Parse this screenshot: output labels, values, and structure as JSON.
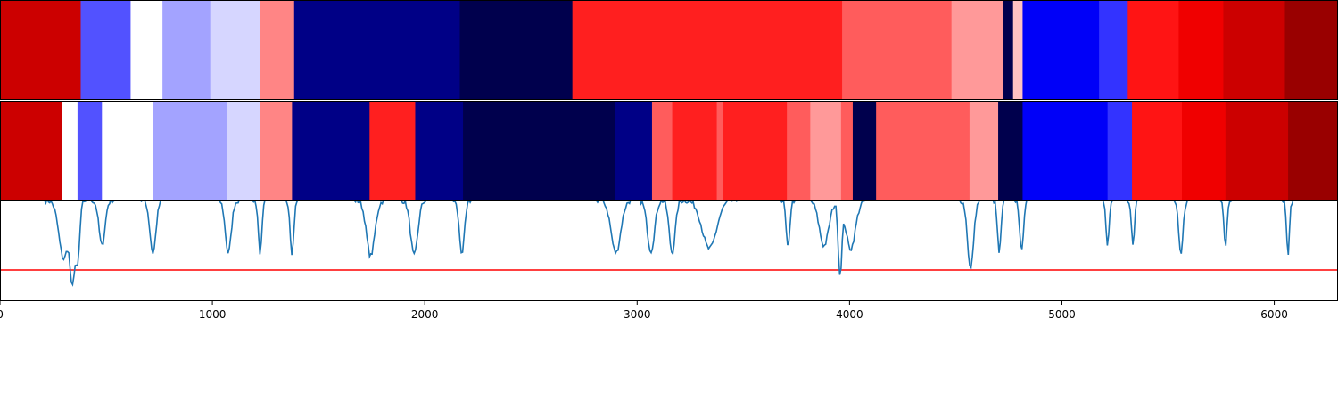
{
  "chart_data": {
    "type": "heatmap",
    "title": "",
    "xlabel": "",
    "ylabel": "",
    "xlim": [
      0,
      6300
    ],
    "x_ticks": [
      {
        "value": 0,
        "label": "0"
      },
      {
        "value": 1000,
        "label": "1000"
      },
      {
        "value": 2000,
        "label": "2000"
      },
      {
        "value": 3000,
        "label": "3000"
      },
      {
        "value": 4000,
        "label": "4000"
      },
      {
        "value": 5000,
        "label": "5000"
      },
      {
        "value": 6000,
        "label": "6000"
      }
    ],
    "colormap": "seismic",
    "value_range": [
      0,
      1
    ],
    "tracks": [
      {
        "segments": [
          {
            "start": 0,
            "end": 380,
            "value": 0.85
          },
          {
            "start": 380,
            "end": 615,
            "value": 0.33
          },
          {
            "start": 615,
            "end": 765,
            "value": 0.5
          },
          {
            "start": 765,
            "end": 990,
            "value": 0.41
          },
          {
            "start": 990,
            "end": 1225,
            "value": 0.46
          },
          {
            "start": 1225,
            "end": 1385,
            "value": 0.62
          },
          {
            "start": 1385,
            "end": 2165,
            "value": 0.08
          },
          {
            "start": 2165,
            "end": 2695,
            "value": 0.0
          },
          {
            "start": 2695,
            "end": 3965,
            "value": 0.72
          },
          {
            "start": 3965,
            "end": 4480,
            "value": 0.66
          },
          {
            "start": 4480,
            "end": 4725,
            "value": 0.6
          },
          {
            "start": 4725,
            "end": 4770,
            "value": 0.0
          },
          {
            "start": 4770,
            "end": 4815,
            "value": 0.56
          },
          {
            "start": 4815,
            "end": 5175,
            "value": 0.24
          },
          {
            "start": 5175,
            "end": 5310,
            "value": 0.3
          },
          {
            "start": 5310,
            "end": 5550,
            "value": 0.73
          },
          {
            "start": 5550,
            "end": 5760,
            "value": 0.78
          },
          {
            "start": 5760,
            "end": 6050,
            "value": 0.85
          },
          {
            "start": 6050,
            "end": 6300,
            "value": 0.95
          }
        ]
      },
      {
        "segments": [
          {
            "start": 0,
            "end": 290,
            "value": 0.85
          },
          {
            "start": 290,
            "end": 365,
            "value": 0.5
          },
          {
            "start": 365,
            "end": 480,
            "value": 0.33
          },
          {
            "start": 480,
            "end": 720,
            "value": 0.5
          },
          {
            "start": 720,
            "end": 1070,
            "value": 0.41
          },
          {
            "start": 1070,
            "end": 1225,
            "value": 0.46
          },
          {
            "start": 1225,
            "end": 1375,
            "value": 0.62
          },
          {
            "start": 1375,
            "end": 1740,
            "value": 0.08
          },
          {
            "start": 1740,
            "end": 1955,
            "value": 0.72
          },
          {
            "start": 1955,
            "end": 2180,
            "value": 0.08
          },
          {
            "start": 2180,
            "end": 2895,
            "value": 0.0
          },
          {
            "start": 2895,
            "end": 3070,
            "value": 0.08
          },
          {
            "start": 3070,
            "end": 3165,
            "value": 0.66
          },
          {
            "start": 3165,
            "end": 3375,
            "value": 0.72
          },
          {
            "start": 3375,
            "end": 3405,
            "value": 0.66
          },
          {
            "start": 3405,
            "end": 3705,
            "value": 0.72
          },
          {
            "start": 3705,
            "end": 3815,
            "value": 0.66
          },
          {
            "start": 3815,
            "end": 3960,
            "value": 0.6
          },
          {
            "start": 3960,
            "end": 4015,
            "value": 0.66
          },
          {
            "start": 4015,
            "end": 4125,
            "value": 0.0
          },
          {
            "start": 4125,
            "end": 4565,
            "value": 0.66
          },
          {
            "start": 4565,
            "end": 4700,
            "value": 0.6
          },
          {
            "start": 4700,
            "end": 4815,
            "value": 0.0
          },
          {
            "start": 4815,
            "end": 5215,
            "value": 0.24
          },
          {
            "start": 5215,
            "end": 5330,
            "value": 0.3
          },
          {
            "start": 5330,
            "end": 5565,
            "value": 0.73
          },
          {
            "start": 5565,
            "end": 5770,
            "value": 0.78
          },
          {
            "start": 5770,
            "end": 6065,
            "value": 0.85
          },
          {
            "start": 6065,
            "end": 6300,
            "value": 0.95
          }
        ]
      }
    ],
    "line_panel": {
      "ylim": [
        0,
        1
      ],
      "threshold": {
        "value": 0.31,
        "color": "#ff0000"
      },
      "line_color": "#1f77b4",
      "baseline": 1.0,
      "dips": [
        {
          "center": 300,
          "width": 40,
          "depth": 0.58
        },
        {
          "center": 340,
          "width": 18,
          "depth": 0.72
        },
        {
          "center": 365,
          "width": 18,
          "depth": 0.62
        },
        {
          "center": 480,
          "width": 25,
          "depth": 0.45
        },
        {
          "center": 720,
          "width": 25,
          "depth": 0.52
        },
        {
          "center": 1075,
          "width": 25,
          "depth": 0.52
        },
        {
          "center": 1225,
          "width": 15,
          "depth": 0.52
        },
        {
          "center": 1375,
          "width": 15,
          "depth": 0.52
        },
        {
          "center": 1745,
          "width": 35,
          "depth": 0.55
        },
        {
          "center": 1950,
          "width": 30,
          "depth": 0.55
        },
        {
          "center": 2175,
          "width": 22,
          "depth": 0.52
        },
        {
          "center": 2900,
          "width": 40,
          "depth": 0.52
        },
        {
          "center": 3065,
          "width": 30,
          "depth": 0.5
        },
        {
          "center": 3165,
          "width": 25,
          "depth": 0.52
        },
        {
          "center": 3340,
          "width": 60,
          "depth": 0.48
        },
        {
          "center": 3710,
          "width": 15,
          "depth": 0.48
        },
        {
          "center": 3880,
          "width": 40,
          "depth": 0.45
        },
        {
          "center": 3955,
          "width": 15,
          "depth": 0.7
        },
        {
          "center": 4005,
          "width": 40,
          "depth": 0.48
        },
        {
          "center": 4570,
          "width": 25,
          "depth": 0.68
        },
        {
          "center": 4705,
          "width": 15,
          "depth": 0.52
        },
        {
          "center": 4810,
          "width": 15,
          "depth": 0.52
        },
        {
          "center": 5215,
          "width": 12,
          "depth": 0.45
        },
        {
          "center": 5335,
          "width": 12,
          "depth": 0.45
        },
        {
          "center": 5560,
          "width": 18,
          "depth": 0.55
        },
        {
          "center": 5770,
          "width": 12,
          "depth": 0.45
        },
        {
          "center": 6065,
          "width": 12,
          "depth": 0.52
        }
      ]
    }
  }
}
